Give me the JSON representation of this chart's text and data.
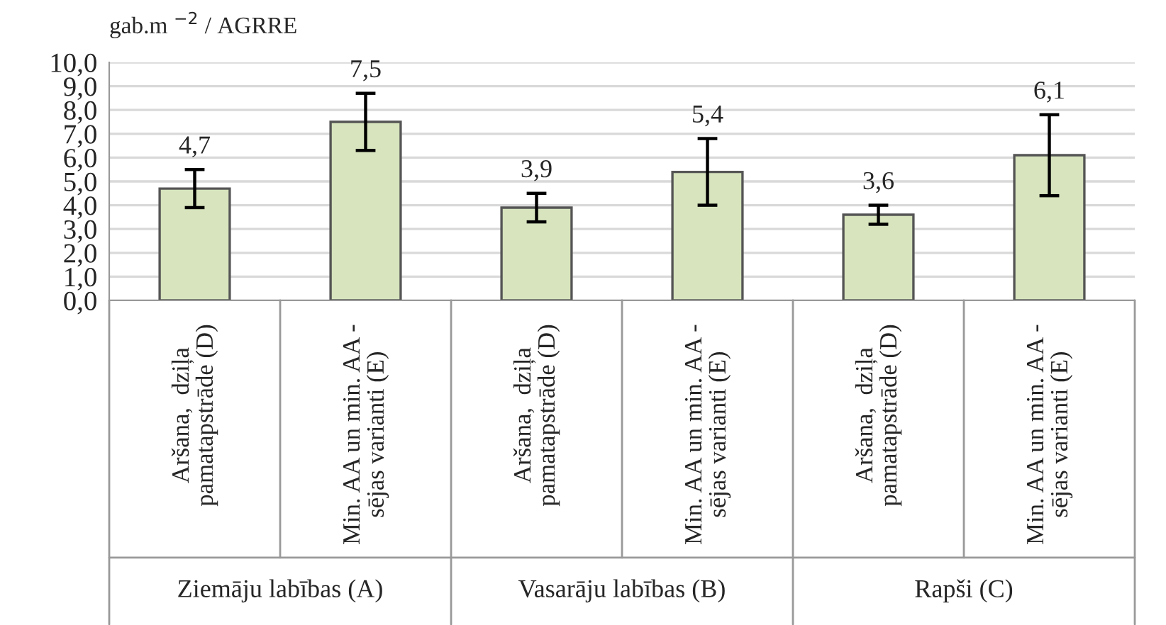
{
  "chart_data": {
    "type": "bar",
    "ylabel": "gab.m $^{−2}$ / AGRRE",
    "categories": [
      "Aršana,  dziļa\npamatapstrāde (D)",
      "Min. AA un min. AA -\nsējas varianti (E)",
      "Aršana,  dziļa\npamatapstrāde (D)",
      "Min. AA un min. AA -\nsējas varianti (E)",
      "Aršana,  dziļa\npamatapstrāde (D)",
      "Min. AA un min. AA -\nsējas varianti (E)"
    ],
    "values": [
      4.7,
      7.5,
      3.9,
      5.4,
      3.6,
      6.1
    ],
    "errors": [
      0.8,
      1.2,
      0.6,
      1.4,
      0.4,
      1.7
    ],
    "value_labels": [
      "4,7",
      "7,5",
      "3,9",
      "5,4",
      "3,6",
      "6,1"
    ],
    "color": "#d7e4bd",
    "ylim": [
      0,
      10
    ],
    "yticks": [
      {
        "value": 0,
        "label": "0,0"
      },
      {
        "value": 1,
        "label": "1,0"
      },
      {
        "value": 2,
        "label": "2,0"
      },
      {
        "value": 3,
        "label": "3,0"
      },
      {
        "value": 4,
        "label": "4,0"
      },
      {
        "value": 5,
        "label": "5,0"
      },
      {
        "value": 6,
        "label": "6,0"
      },
      {
        "value": 7,
        "label": "7,0"
      },
      {
        "value": 8,
        "label": "8,0"
      },
      {
        "value": 9,
        "label": "9,0"
      },
      {
        "value": 10,
        "label": "10,0"
      }
    ],
    "grid": "y",
    "annotations": [
      "Ziemāju labības (A)",
      "Vasarāju labības (B)",
      "Rapši (C)"
    ]
  }
}
